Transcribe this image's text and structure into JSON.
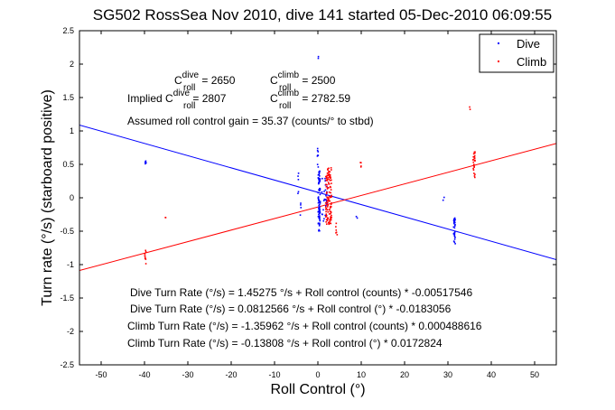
{
  "chart_data": {
    "type": "scatter",
    "title": "SG502 RossSea Nov 2010, dive 141 started 05-Dec-2010 06:09:55",
    "xlabel": "Roll Control (°)",
    "ylabel": "Turn rate (°/s) (starboard positive)",
    "xlim": [
      -55,
      55
    ],
    "ylim": [
      -2.5,
      2.5
    ],
    "xticks": [
      -50,
      -40,
      -30,
      -20,
      -10,
      0,
      10,
      20,
      30,
      40,
      50
    ],
    "yticks": [
      -2.5,
      -2,
      -1.5,
      -1,
      -0.5,
      0,
      0.5,
      1,
      1.5,
      2,
      2.5
    ],
    "grid": false,
    "legend": {
      "position": "top-right",
      "entries": [
        "Dive",
        "Climb"
      ]
    },
    "colors": {
      "dive": "#0000ff",
      "climb": "#ff0000",
      "axis": "#000000"
    },
    "series": [
      {
        "name": "Dive",
        "color": "#0000ff",
        "fit": {
          "slope": -0.0183056,
          "intercept": 0.0812566
        },
        "clusters": [
          {
            "x": 0.3,
            "y_min": -0.5,
            "y_max": 0.4,
            "n": 90,
            "spread": 0.5
          },
          {
            "x": 0.0,
            "y_min": 0.45,
            "y_max": 0.8,
            "n": 8,
            "spread": 0.3
          },
          {
            "x": 0.1,
            "y_min": 2.05,
            "y_max": 2.15,
            "n": 2,
            "spread": 0.1
          },
          {
            "x": 31.5,
            "y_min": -0.7,
            "y_max": -0.3,
            "n": 30,
            "spread": 0.4
          },
          {
            "x": -39.7,
            "y_min": 0.5,
            "y_max": 0.6,
            "n": 5,
            "spread": 0.3
          },
          {
            "x": -4.5,
            "y_min": 0.05,
            "y_max": 0.4,
            "n": 5,
            "spread": 0.3
          },
          {
            "x": -4.0,
            "y_min": -0.3,
            "y_max": 0.05,
            "n": 4,
            "spread": 0.3
          },
          {
            "x": 9.0,
            "y_min": -0.32,
            "y_max": -0.28,
            "n": 2,
            "spread": 0.3
          },
          {
            "x": 29.0,
            "y_min": -0.05,
            "y_max": 0.02,
            "n": 2,
            "spread": 0.4
          },
          {
            "x": 1.5,
            "y_min": -0.35,
            "y_max": 0.3,
            "n": 25,
            "spread": 1.2
          }
        ]
      },
      {
        "name": "Climb",
        "color": "#ff0000",
        "fit": {
          "slope": 0.0172824,
          "intercept": -0.13808
        },
        "clusters": [
          {
            "x": 2.5,
            "y_min": -0.4,
            "y_max": 0.45,
            "n": 120,
            "spread": 1.4
          },
          {
            "x": 36.0,
            "y_min": 0.3,
            "y_max": 0.7,
            "n": 25,
            "spread": 0.5
          },
          {
            "x": -39.8,
            "y_min": -1.0,
            "y_max": -0.75,
            "n": 10,
            "spread": 0.3
          },
          {
            "x": 9.8,
            "y_min": 0.45,
            "y_max": 0.55,
            "n": 4,
            "spread": 0.4
          },
          {
            "x": 35.0,
            "y_min": 1.3,
            "y_max": 1.36,
            "n": 2,
            "spread": 0.3
          },
          {
            "x": -35.0,
            "y_min": -0.3,
            "y_max": -0.26,
            "n": 2,
            "spread": 0.4
          },
          {
            "x": 4.0,
            "y_min": -0.65,
            "y_max": -0.2,
            "n": 6,
            "spread": 1.0
          }
        ]
      }
    ],
    "annotations": {
      "c_dive_prefix": "C",
      "c_dive_sup": "dive",
      "c_dive_sub": "roll",
      "c_dive_value": " = 2650",
      "c_climb_prefix": "C",
      "c_climb_sup": "climb",
      "c_climb_sub": "roll",
      "c_climb_value": " = 2500",
      "implied_prefix": "Implied C",
      "implied_dive_sup": "dive",
      "implied_dive_sub": "roll",
      "implied_dive_value": " = 2807",
      "implied_climb_prefix": "C",
      "implied_climb_sup": "climb",
      "implied_climb_sub": "roll",
      "implied_climb_value": " = 2782.59",
      "gain": "Assumed roll control gain = 35.37 (counts/° to stbd)",
      "fit1": "Dive Turn Rate (°/s) = 1.45275 °/s + Roll control (counts) * -0.00517546",
      "fit2": "Dive Turn Rate (°/s) = 0.0812566 °/s + Roll control (°) * -0.0183056",
      "fit3": "Climb Turn Rate (°/s) = -1.35962 °/s + Roll control (counts) * 0.000488616",
      "fit4": "Climb Turn Rate (°/s) = -0.13808 °/s + Roll control (°) * 0.0172824"
    }
  }
}
